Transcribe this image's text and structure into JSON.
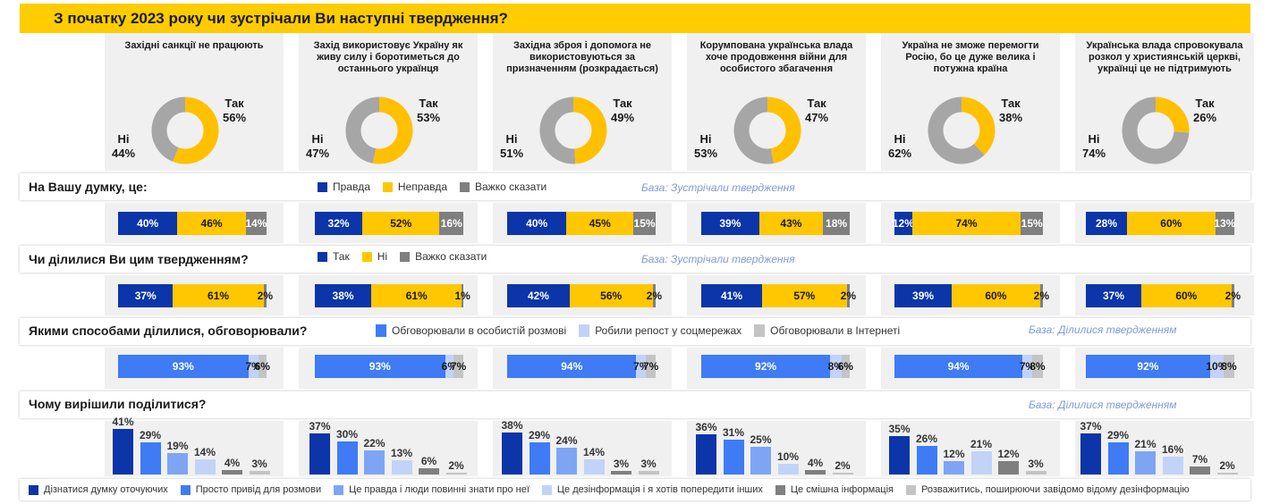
{
  "title": "З початку 2023 року чи зустрічали Ви наступні твердження?",
  "colors": {
    "yes": "#FFC000",
    "no": "#A6A6A6",
    "dark_blue": "#0B35A8",
    "yellow": "#FFC700",
    "gray": "#7F7F7F",
    "blue": "#3E7BF5",
    "light_blue": "#C2D3F8",
    "light_gray": "#C4C4C4",
    "mid_blue": "#7EA5F3"
  },
  "chart_data": [
    {
      "type": "pie",
      "title": "Донат-діаграми: З початку 2023 року чи зустрічали Ви наступні твердження?",
      "categories": [
        "Західні санкції не працюють",
        "Захід використовує Україну як живу силу і боротиметься до останнього українця",
        "Західна зброя і допомога не використовуються за призначенням (розкрадається)",
        "Корумпована українська влада хоче продовження війни для особистого збагачення",
        "Україна не зможе перемогти Росію, бо це дуже велика і потужна країна",
        "Українська влада спровокувала розкол у християнській церкві, українці це не підтримують"
      ],
      "series": [
        {
          "name": "Так",
          "values": [
            56,
            53,
            49,
            47,
            38,
            26
          ]
        },
        {
          "name": "Ні",
          "values": [
            44,
            47,
            51,
            53,
            62,
            74
          ]
        }
      ]
    },
    {
      "type": "bar",
      "title": "На Вашу думку, це:",
      "categories": [
        "Західні санкції не працюють",
        "Захід використовує Україну як живу силу і боротиметься до останнього українця",
        "Західна зброя і допомога не використовуються за призначенням (розкрадається)",
        "Корумпована українська влада хоче продовження війни для особистого збагачення",
        "Україна не зможе перемогти Росію, бо це дуже велика і потужна країна",
        "Українська влада спровокувала розкол у християнській церкві, українці це не підтримують"
      ],
      "series": [
        {
          "name": "Правда",
          "values": [
            40,
            32,
            40,
            39,
            12,
            28
          ]
        },
        {
          "name": "Неправда",
          "values": [
            46,
            52,
            45,
            43,
            74,
            60
          ]
        },
        {
          "name": "Важко сказати",
          "values": [
            14,
            16,
            15,
            18,
            15,
            13
          ]
        }
      ]
    },
    {
      "type": "bar",
      "title": "Чи ділилися Ви цим твердженням?",
      "categories": [
        "Західні санкції не працюють",
        "Захід використовує Україну як живу силу і боротиметься до останнього українця",
        "Західна зброя і допомога не використовуються за призначенням (розкрадається)",
        "Корумпована українська влада хоче продовження війни для особистого збагачення",
        "Україна не зможе перемогти Росію, бо це дуже велика і потужна країна",
        "Українська влада спровокувала розкол у християнській церкві, українці це не підтримують"
      ],
      "series": [
        {
          "name": "Так",
          "values": [
            37,
            38,
            42,
            41,
            39,
            37
          ]
        },
        {
          "name": "Ні",
          "values": [
            61,
            61,
            56,
            57,
            60,
            60
          ]
        },
        {
          "name": "Важко сказати",
          "values": [
            2,
            1,
            2,
            2,
            2,
            2
          ]
        }
      ]
    },
    {
      "type": "bar",
      "title": "Якими способами ділилися, обговорювали?",
      "categories": [
        "Західні санкції не працюють",
        "Захід використовує Україну як живу силу і боротиметься до останнього українця",
        "Західна зброя і допомога не використовуються за призначенням (розкрадається)",
        "Корумпована українська влада хоче продовження війни для особистого збагачення",
        "Україна не зможе перемогти Росію, бо це дуже велика і потужна країна",
        "Українська влада спровокувала розкол у християнській церкві, українці це не підтримують"
      ],
      "series": [
        {
          "name": "Обговорювали в особистій розмові",
          "values": [
            93,
            93,
            94,
            92,
            94,
            92
          ]
        },
        {
          "name": "Робили репост у соцмережах",
          "values": [
            7,
            6,
            7,
            8,
            7,
            10
          ]
        },
        {
          "name": "Обговорювали в Інтернеті",
          "values": [
            6,
            7,
            7,
            6,
            8,
            8
          ]
        }
      ]
    },
    {
      "type": "bar",
      "title": "Чому вирішили поділитися?",
      "categories": [
        "Західні санкції не працюють",
        "Захід використовує Україну як живу силу і боротиметься до останнього українця",
        "Західна зброя і допомога не використовуються за призначенням (розкрадається)",
        "Корумпована українська влада хоче продовження війни для особистого збагачення",
        "Україна не зможе перемогти Росію, бо це дуже велика і потужна країна",
        "Українська влада спровокувала розкол у християнській церкві, українці це не підтримують"
      ],
      "series": [
        {
          "name": "Дізнатися думку оточуючих",
          "values": [
            41,
            37,
            38,
            36,
            35,
            37
          ]
        },
        {
          "name": "Просто привід для розмови",
          "values": [
            29,
            30,
            29,
            31,
            26,
            29
          ]
        },
        {
          "name": "Це правда і люди повинні знати про неї",
          "values": [
            19,
            22,
            24,
            25,
            12,
            21
          ]
        },
        {
          "name": "Це дезінформація і я хотів попередити інших",
          "values": [
            14,
            13,
            14,
            10,
            21,
            16
          ]
        },
        {
          "name": "Це смішна інформація",
          "values": [
            4,
            6,
            3,
            4,
            12,
            7
          ]
        },
        {
          "name": "Розважитись, поширюючи завідомо відому дезінформацію",
          "values": [
            3,
            2,
            3,
            2,
            3,
            2
          ]
        }
      ],
      "ylim": [
        0,
        41
      ]
    }
  ],
  "columns": [
    {
      "title": "Західні санкції не працюють",
      "yes_label": "Так",
      "yes_value": "56%",
      "no_label": "Ні",
      "no_value": "44%"
    },
    {
      "title": "Захід використовує Україну як живу силу і боротиметься до останнього українця",
      "yes_label": "Так",
      "yes_value": "53%",
      "no_label": "Ні",
      "no_value": "47%"
    },
    {
      "title": "Західна зброя і допомога не використовуються за призначенням (розкрадається)",
      "yes_label": "Так",
      "yes_value": "49%",
      "no_label": "Ні",
      "no_value": "51%"
    },
    {
      "title": "Корумпована українська влада хоче продовження війни для особистого збагачення",
      "yes_label": "Так",
      "yes_value": "47%",
      "no_label": "Ні",
      "no_value": "53%"
    },
    {
      "title": "Україна не зможе перемогти Росію, бо це дуже велика і потужна країна",
      "yes_label": "Так",
      "yes_value": "38%",
      "no_label": "Ні",
      "no_value": "62%"
    },
    {
      "title": "Українська влада спровокувала розкол у християнській церкві, українці це не підтримують",
      "yes_label": "Так",
      "yes_value": "26%",
      "no_label": "Ні",
      "no_value": "74%"
    }
  ],
  "sections": {
    "opinion": {
      "question": "На Вашу думку, це:",
      "base": "База: Зустрічали твердження",
      "legend": [
        {
          "label": "Правда",
          "color": "#0B35A8"
        },
        {
          "label": "Неправда",
          "color": "#FFC700"
        },
        {
          "label": "Важко сказати",
          "color": "#7F7F7F"
        }
      ],
      "bars": [
        [
          {
            "v": 40,
            "t": "40%"
          },
          {
            "v": 46,
            "t": "46%"
          },
          {
            "v": 14,
            "t": "14%"
          }
        ],
        [
          {
            "v": 32,
            "t": "32%"
          },
          {
            "v": 52,
            "t": "52%"
          },
          {
            "v": 16,
            "t": "16%"
          }
        ],
        [
          {
            "v": 40,
            "t": "40%"
          },
          {
            "v": 45,
            "t": "45%"
          },
          {
            "v": 15,
            "t": "15%"
          }
        ],
        [
          {
            "v": 39,
            "t": "39%"
          },
          {
            "v": 43,
            "t": "43%"
          },
          {
            "v": 18,
            "t": "18%"
          }
        ],
        [
          {
            "v": 12,
            "t": "12%"
          },
          {
            "v": 74,
            "t": "74%"
          },
          {
            "v": 15,
            "t": "15%"
          }
        ],
        [
          {
            "v": 28,
            "t": "28%"
          },
          {
            "v": 60,
            "t": "60%"
          },
          {
            "v": 13,
            "t": "13%"
          }
        ]
      ]
    },
    "shared": {
      "question": "Чи ділилися Ви цим твердженням?",
      "base": "База: Зустрічали твердження",
      "legend": [
        {
          "label": "Так",
          "color": "#0B35A8"
        },
        {
          "label": "Ні",
          "color": "#FFC700"
        },
        {
          "label": "Важко сказати",
          "color": "#7F7F7F"
        }
      ],
      "bars": [
        [
          {
            "v": 37,
            "t": "37%"
          },
          {
            "v": 61,
            "t": "61%"
          },
          {
            "v": 2,
            "t": "2%"
          }
        ],
        [
          {
            "v": 38,
            "t": "38%"
          },
          {
            "v": 61,
            "t": "61%"
          },
          {
            "v": 1,
            "t": "1%"
          }
        ],
        [
          {
            "v": 42,
            "t": "42%"
          },
          {
            "v": 56,
            "t": "56%"
          },
          {
            "v": 2,
            "t": "2%"
          }
        ],
        [
          {
            "v": 41,
            "t": "41%"
          },
          {
            "v": 57,
            "t": "57%"
          },
          {
            "v": 2,
            "t": "2%"
          }
        ],
        [
          {
            "v": 39,
            "t": "39%"
          },
          {
            "v": 60,
            "t": "60%"
          },
          {
            "v": 2,
            "t": "2%"
          }
        ],
        [
          {
            "v": 37,
            "t": "37%"
          },
          {
            "v": 60,
            "t": "60%"
          },
          {
            "v": 2,
            "t": "2%"
          }
        ]
      ]
    },
    "ways": {
      "question": "Якими способами ділилися, обговорювали?",
      "base": "База: Ділилися твердженням",
      "legend": [
        {
          "label": "Обговорювали в особистій розмові",
          "color": "#3E7BF5"
        },
        {
          "label": "Робили репост у соцмережах",
          "color": "#C2D3F8"
        },
        {
          "label": "Обговорювали в Інтернеті",
          "color": "#C4C4C4"
        }
      ],
      "bars": [
        [
          {
            "v": 93,
            "t": "93%"
          },
          {
            "v": 7,
            "t": "7%"
          },
          {
            "v": 6,
            "t": "6%"
          }
        ],
        [
          {
            "v": 93,
            "t": "93%"
          },
          {
            "v": 6,
            "t": "6%"
          },
          {
            "v": 7,
            "t": "7%"
          }
        ],
        [
          {
            "v": 94,
            "t": "94%"
          },
          {
            "v": 7,
            "t": "7%"
          },
          {
            "v": 7,
            "t": "7%"
          }
        ],
        [
          {
            "v": 92,
            "t": "92%"
          },
          {
            "v": 8,
            "t": "8%"
          },
          {
            "v": 6,
            "t": "6%"
          }
        ],
        [
          {
            "v": 94,
            "t": "94%"
          },
          {
            "v": 7,
            "t": "7%"
          },
          {
            "v": 8,
            "t": "8%"
          }
        ],
        [
          {
            "v": 92,
            "t": "92%"
          },
          {
            "v": 10,
            "t": "10%"
          },
          {
            "v": 8,
            "t": "8%"
          }
        ]
      ]
    },
    "why": {
      "question": "Чому вирішили поділитися?",
      "base": "База: Ділилися твердженням",
      "legend": [
        {
          "label": "Дізнатися думку оточуючих",
          "color": "#0B35A8"
        },
        {
          "label": "Просто привід для розмови",
          "color": "#3E7BF5"
        },
        {
          "label": "Це правда і люди повинні знати про неї",
          "color": "#7EA5F3"
        },
        {
          "label": "Це дезінформація і я хотів попередити інших",
          "color": "#C2D3F8"
        },
        {
          "label": "Це смішна інформація",
          "color": "#7F7F7F"
        },
        {
          "label": "Розважитись, поширюючи завідомо відому дезінформацію",
          "color": "#C4C4C4"
        }
      ],
      "cols": [
        [
          {
            "v": 41,
            "t": "41%"
          },
          {
            "v": 29,
            "t": "29%"
          },
          {
            "v": 19,
            "t": "19%"
          },
          {
            "v": 14,
            "t": "14%"
          },
          {
            "v": 4,
            "t": "4%"
          },
          {
            "v": 3,
            "t": "3%"
          }
        ],
        [
          {
            "v": 37,
            "t": "37%"
          },
          {
            "v": 30,
            "t": "30%"
          },
          {
            "v": 22,
            "t": "22%"
          },
          {
            "v": 13,
            "t": "13%"
          },
          {
            "v": 6,
            "t": "6%"
          },
          {
            "v": 2,
            "t": "2%"
          }
        ],
        [
          {
            "v": 38,
            "t": "38%"
          },
          {
            "v": 29,
            "t": "29%"
          },
          {
            "v": 24,
            "t": "24%"
          },
          {
            "v": 14,
            "t": "14%"
          },
          {
            "v": 3,
            "t": "3%"
          },
          {
            "v": 3,
            "t": "3%"
          }
        ],
        [
          {
            "v": 36,
            "t": "36%"
          },
          {
            "v": 31,
            "t": "31%"
          },
          {
            "v": 25,
            "t": "25%"
          },
          {
            "v": 10,
            "t": "10%"
          },
          {
            "v": 4,
            "t": "4%"
          },
          {
            "v": 2,
            "t": "2%"
          }
        ],
        [
          {
            "v": 35,
            "t": "35%"
          },
          {
            "v": 26,
            "t": "26%"
          },
          {
            "v": 12,
            "t": "12%"
          },
          {
            "v": 21,
            "t": "21%"
          },
          {
            "v": 12,
            "t": "12%"
          },
          {
            "v": 3,
            "t": "3%"
          }
        ],
        [
          {
            "v": 37,
            "t": "37%"
          },
          {
            "v": 29,
            "t": "29%"
          },
          {
            "v": 21,
            "t": "21%"
          },
          {
            "v": 16,
            "t": "16%"
          },
          {
            "v": 7,
            "t": "7%"
          },
          {
            "v": 2,
            "t": "2%"
          }
        ]
      ]
    }
  }
}
